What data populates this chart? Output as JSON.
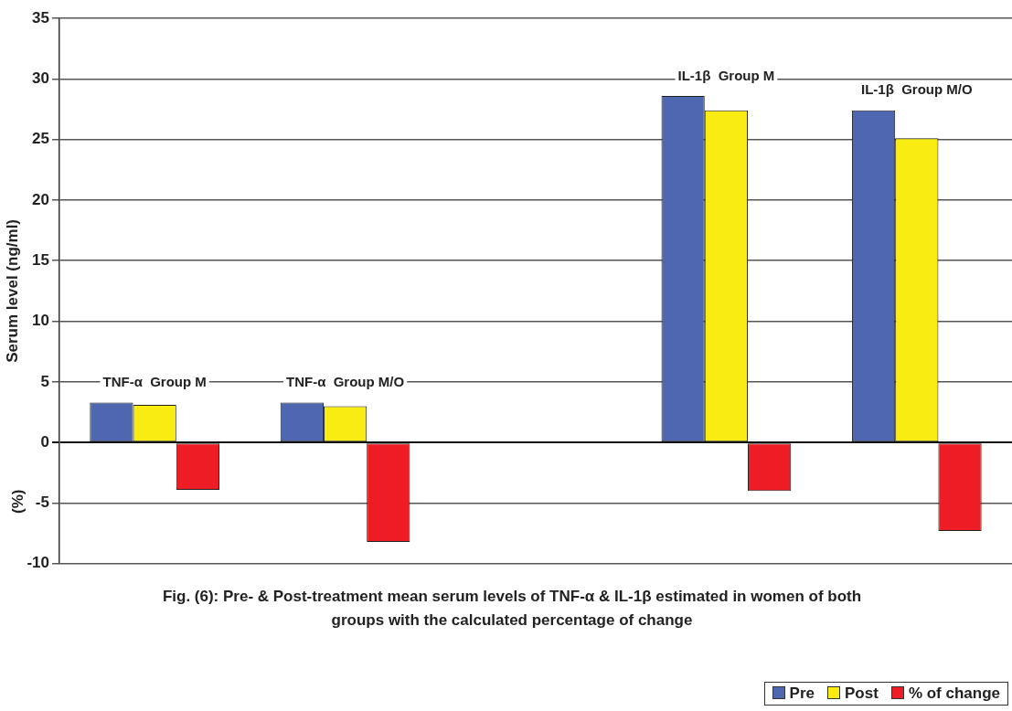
{
  "chart_data": {
    "type": "bar",
    "title": "Fig. (6): Pre- & Post-treatment mean serum levels of TNF-α & IL-1β estimated in women of both groups with the calculated percentage of change",
    "ylabel": "Serum level (ng/ml)",
    "annotations": [
      "(%)"
    ],
    "categories": [
      "TNF-α  Group M",
      "TNF-α  Group M/O",
      null,
      "IL-1β  Group M",
      "IL-1β  Group M/O"
    ],
    "series": [
      {
        "name": "Pre",
        "color": "#4f66b0",
        "values": [
          3.3,
          3.3,
          null,
          28.6,
          27.4
        ]
      },
      {
        "name": "Post",
        "color": "#f8ec12",
        "values": [
          3.1,
          3.0,
          null,
          27.4,
          25.1
        ]
      },
      {
        "name": "% of change",
        "color": "#ee1c24",
        "values": [
          -3.9,
          -8.2,
          null,
          -4.0,
          -7.3
        ]
      }
    ],
    "ylim": [
      -10,
      35
    ],
    "yticks": [
      -10,
      -5,
      0,
      5,
      10,
      15,
      20,
      25,
      30,
      35
    ],
    "grid": "y",
    "legend": "bottom right"
  }
}
